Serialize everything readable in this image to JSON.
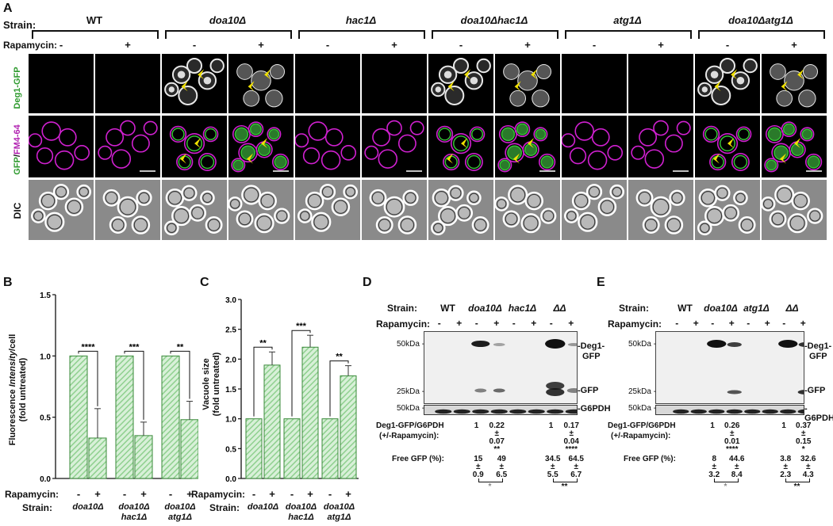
{
  "panelA": {
    "letter": "A",
    "strain_label": "Strain:",
    "rapamycin_label": "Rapamycin:",
    "strains": [
      "WT",
      "doa10Δ",
      "hac1Δ",
      "doa10Δhac1Δ",
      "atg1Δ",
      "doa10Δatg1Δ"
    ],
    "minus": "-",
    "plus": "+",
    "row_labels": {
      "gfp": "Deg1-GFP",
      "merge_gfp": "GFP",
      "merge_slash": "/",
      "merge_fm": "FM4-64",
      "dic": "DIC"
    }
  },
  "panelB": {
    "letter": "B",
    "ylabel_1": "Fluorescence ",
    "ylabel_italic": "Intensity",
    "ylabel_2": "/cell",
    "ylabel_3": "(fold untreated)",
    "rapamycin_label": "Rapamycin:",
    "strain_label": "Strain:",
    "group_labels": [
      [
        "doa10Δ"
      ],
      [
        "doa10Δ",
        "hac1Δ"
      ],
      [
        "doa10Δ",
        "atg1Δ"
      ]
    ],
    "sig": [
      "****",
      "***",
      "**"
    ]
  },
  "panelC": {
    "letter": "C",
    "ylabel_1": "Vacuole size",
    "ylabel_2": "(fold untreated)",
    "rapamycin_label": "Rapamycin:",
    "strain_label": "Strain:",
    "group_labels": [
      [
        "doa10Δ"
      ],
      [
        "doa10Δ",
        "hac1Δ"
      ],
      [
        "doa10Δ",
        "atg1Δ"
      ]
    ],
    "sig": [
      "**",
      "***",
      "**"
    ]
  },
  "chart_data": [
    {
      "type": "bar",
      "panel": "B",
      "categories": [
        "doa10Δ -",
        "doa10Δ +",
        "doa10Δhac1Δ -",
        "doa10Δhac1Δ +",
        "doa10Δatg1Δ -",
        "doa10Δatg1Δ +"
      ],
      "values": [
        1.0,
        0.33,
        1.0,
        0.35,
        1.0,
        0.48
      ],
      "error": [
        0,
        0.24,
        0,
        0.11,
        0,
        0.15
      ],
      "ylabel": "Fluorescence Intensity/cell (fold untreated)",
      "ylim": [
        0,
        1.5
      ],
      "yticks": [
        "0.0",
        "0.5",
        "1.0",
        "1.5"
      ],
      "bar_color": "#8fd08f"
    },
    {
      "type": "bar",
      "panel": "C",
      "categories": [
        "doa10Δ -",
        "doa10Δ +",
        "doa10Δhac1Δ -",
        "doa10Δhac1Δ +",
        "doa10Δatg1Δ -",
        "doa10Δatg1Δ +"
      ],
      "values": [
        1.0,
        1.9,
        1.0,
        2.2,
        1.0,
        1.72
      ],
      "error": [
        0,
        0.22,
        0,
        0.2,
        0,
        0.17
      ],
      "ylabel": "Vacuole size (fold untreated)",
      "ylim": [
        0,
        3.0
      ],
      "yticks": [
        "0.0",
        "0.5",
        "1.0",
        "1.5",
        "2.0",
        "2.5",
        "3.0"
      ],
      "bar_color": "#8fd08f"
    }
  ],
  "panelD": {
    "letter": "D",
    "strain_label": "Strain:",
    "rapamycin_label": "Rapamycin:",
    "strains": [
      "WT",
      "doa10Δ",
      "hac1Δ",
      "ΔΔ"
    ],
    "markers": [
      "50kDa -",
      "25kDa -",
      "50kDa -"
    ],
    "bands": [
      "-Deg1-",
      "GFP",
      "-GFP",
      "-G6PDH"
    ],
    "ratio_label_1": "Deg1-GFP/G6PDH",
    "ratio_label_2": "(+/-Rapamycin):",
    "ratio1": [
      "1",
      "0.22",
      "±",
      "0.07",
      "**"
    ],
    "ratio2": [
      "1",
      "0.17",
      "±",
      "0.04",
      "****"
    ],
    "free_label": "Free GFP (%):",
    "free1": [
      "15",
      "±",
      "0.9",
      "49",
      "±",
      "6.5",
      "*"
    ],
    "free2": [
      "34.5",
      "±",
      "5.5",
      "64.5",
      "±",
      "6.7",
      "**"
    ]
  },
  "panelE": {
    "letter": "E",
    "strain_label": "Strain:",
    "rapamycin_label": "Rapamycin:",
    "strains": [
      "WT",
      "doa10Δ",
      "atg1Δ",
      "ΔΔ"
    ],
    "markers": [
      "50kDa -",
      "25kDa -",
      "50kDa -"
    ],
    "bands": [
      "-Deg1-",
      "GFP",
      "-GFP",
      "-G6PDH"
    ],
    "ratio_label_1": "Deg1-GFP/G6PDH",
    "ratio_label_2": "(+/-Rapamycin):",
    "ratio1": [
      "1",
      "0.26",
      "±",
      "0.01",
      "****"
    ],
    "ratio2": [
      "1",
      "0.37",
      "±",
      "0.15",
      "*"
    ],
    "free_label": "Free GFP (%):",
    "free1": [
      "8",
      "±",
      "3.2",
      "44.6",
      "±",
      "8.4",
      "*"
    ],
    "free2": [
      "3.8",
      "±",
      "2.3",
      "32.6",
      "±",
      "4.3",
      "**"
    ]
  },
  "colors": {
    "gfp": "#2e9a2e",
    "fm": "#d020d0",
    "arrow": "#f0e000",
    "bar": "#8fd08f"
  }
}
